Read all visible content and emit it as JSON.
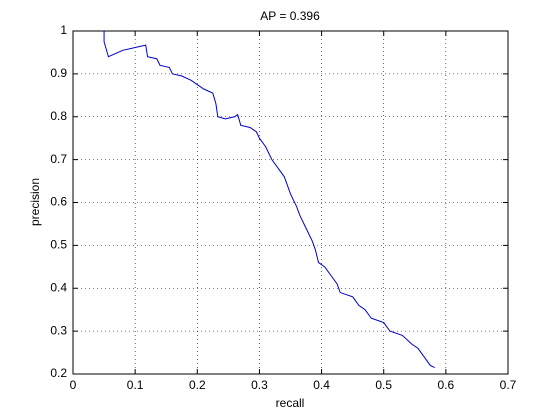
{
  "chart_data": {
    "type": "line",
    "title": "AP = 0.396",
    "x_label": "recall",
    "y_label": "precision",
    "x": [
      0.05,
      0.05,
      0.057,
      0.08,
      0.117,
      0.12,
      0.135,
      0.14,
      0.155,
      0.16,
      0.175,
      0.19,
      0.2,
      0.21,
      0.225,
      0.23,
      0.233,
      0.245,
      0.26,
      0.265,
      0.27,
      0.285,
      0.295,
      0.3,
      0.31,
      0.32,
      0.33,
      0.34,
      0.345,
      0.35,
      0.36,
      0.365,
      0.375,
      0.385,
      0.39,
      0.395,
      0.405,
      0.415,
      0.425,
      0.43,
      0.45,
      0.46,
      0.47,
      0.48,
      0.5,
      0.51,
      0.53,
      0.545,
      0.555,
      0.565,
      0.575,
      0.582
    ],
    "values": [
      1.0,
      0.975,
      0.94,
      0.955,
      0.967,
      0.94,
      0.935,
      0.92,
      0.915,
      0.9,
      0.895,
      0.885,
      0.875,
      0.865,
      0.855,
      0.83,
      0.8,
      0.795,
      0.8,
      0.805,
      0.78,
      0.775,
      0.765,
      0.75,
      0.73,
      0.7,
      0.68,
      0.66,
      0.64,
      0.62,
      0.59,
      0.57,
      0.54,
      0.51,
      0.49,
      0.46,
      0.45,
      0.43,
      0.41,
      0.39,
      0.38,
      0.36,
      0.35,
      0.33,
      0.32,
      0.3,
      0.29,
      0.27,
      0.26,
      0.24,
      0.22,
      0.215
    ],
    "color": "#0000cc",
    "xlim": [
      0,
      0.7
    ],
    "ylim": [
      0.2,
      1
    ],
    "xticks": [
      0,
      0.1,
      0.2,
      0.3,
      0.4,
      0.5,
      0.6,
      0.7
    ],
    "yticks": [
      0.2,
      0.3,
      0.4,
      0.5,
      0.6,
      0.7,
      0.8,
      0.9,
      1
    ],
    "grid": true
  }
}
